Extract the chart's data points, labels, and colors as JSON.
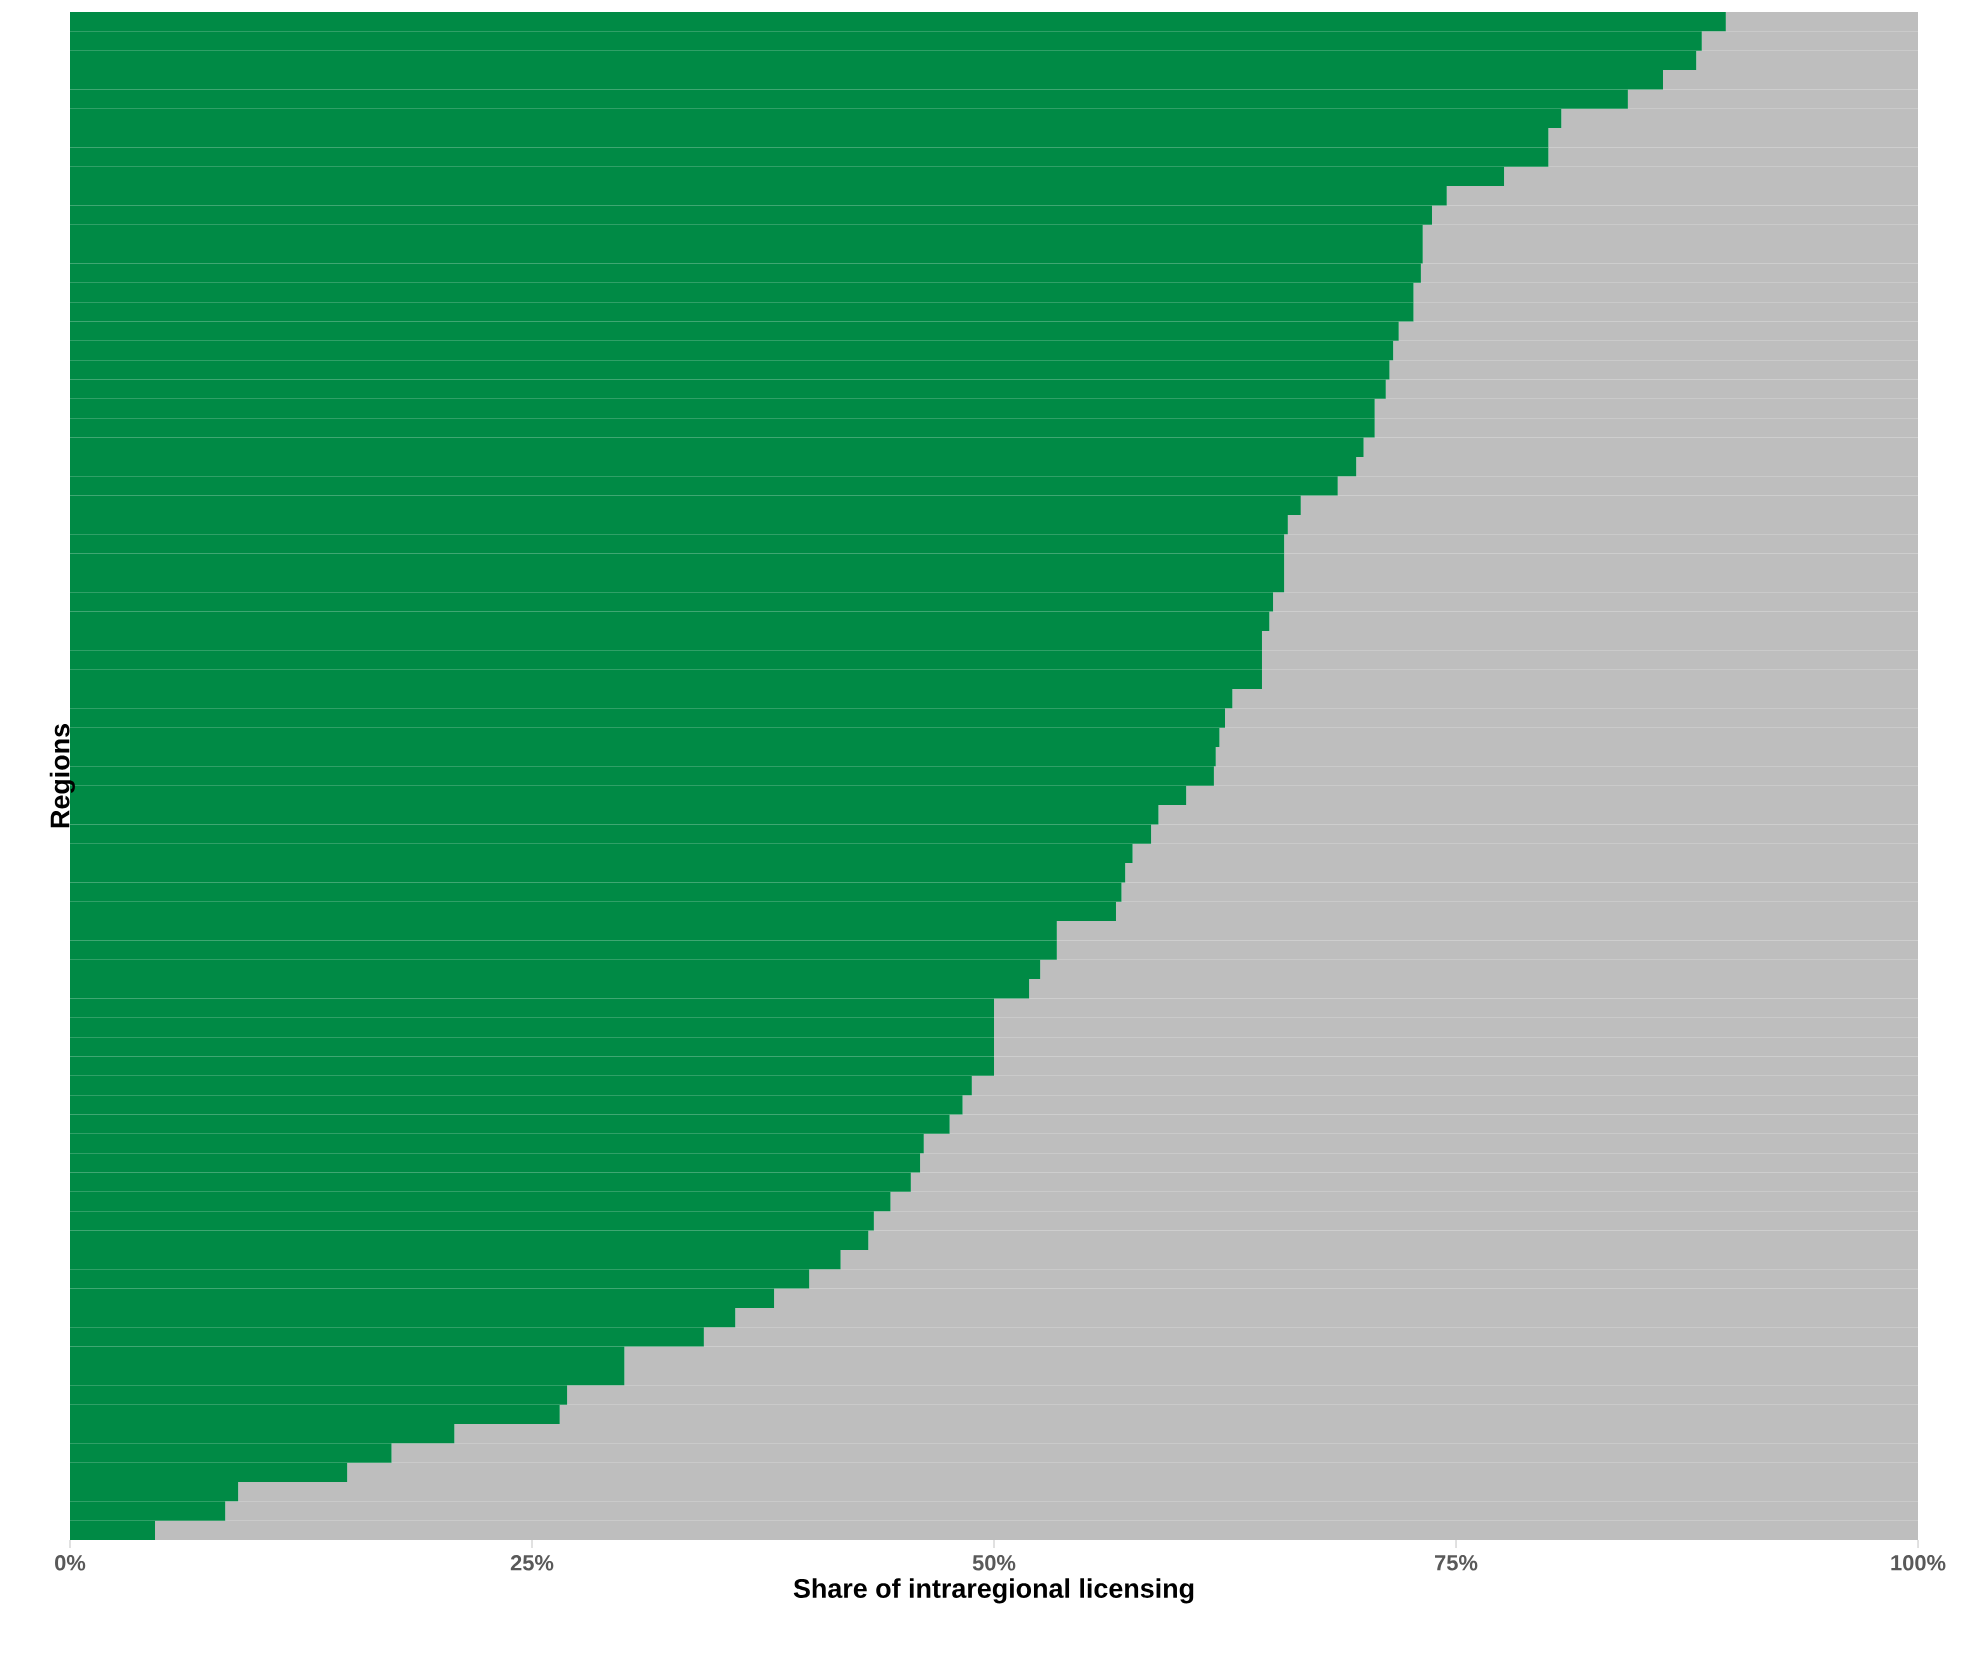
{
  "chart_data": {
    "type": "bar",
    "orientation": "horizontal",
    "stacked": true,
    "xlabel": "Share of intraregional licensing",
    "ylabel": "Regions",
    "categories": [
      null,
      null,
      null,
      null,
      null,
      null,
      null,
      null,
      null,
      null,
      null,
      null,
      null,
      null,
      null,
      null,
      null,
      null,
      null,
      null,
      null,
      null,
      null,
      null,
      null,
      null,
      null,
      null,
      null,
      null,
      null,
      null,
      null,
      null,
      null,
      null,
      null,
      null,
      null,
      null,
      null,
      null,
      null,
      null,
      null,
      null,
      null,
      null,
      null,
      null,
      null,
      null,
      null,
      null,
      null,
      null,
      null,
      null,
      null,
      null,
      null,
      null,
      null,
      null,
      null,
      null,
      null,
      null,
      null,
      null,
      null,
      null,
      null,
      null,
      null,
      null,
      null,
      null,
      null
    ],
    "series": [
      {
        "color": "#008a45",
        "values": [
          89.6,
          88.3,
          88.0,
          86.2,
          84.3,
          80.7,
          80.0,
          80.0,
          77.6,
          74.5,
          73.7,
          73.2,
          73.2,
          73.1,
          72.7,
          72.7,
          71.9,
          71.6,
          71.4,
          71.2,
          70.6,
          70.6,
          70.0,
          69.6,
          68.6,
          66.6,
          65.9,
          65.7,
          65.7,
          65.7,
          65.1,
          64.9,
          64.5,
          64.5,
          64.5,
          62.9,
          62.5,
          62.2,
          62.0,
          61.9,
          60.4,
          58.9,
          58.5,
          57.5,
          57.1,
          56.9,
          56.6,
          53.4,
          53.4,
          52.5,
          51.9,
          50.0,
          50.0,
          50.0,
          50.0,
          48.8,
          48.3,
          47.6,
          46.2,
          46.0,
          45.5,
          44.4,
          43.5,
          43.2,
          41.7,
          40.0,
          38.1,
          36.0,
          34.3,
          30.0,
          30.0,
          26.9,
          26.5,
          20.8,
          17.4,
          15.0,
          9.1,
          8.4,
          4.6
        ]
      },
      {
        "color": "#bebebe",
        "values": [
          10.4,
          11.7,
          12.0,
          13.8,
          15.7,
          19.3,
          20.0,
          20.0,
          22.4,
          25.5,
          26.3,
          26.8,
          26.8,
          26.9,
          27.3,
          27.3,
          28.1,
          28.4,
          28.6,
          28.8,
          29.4,
          29.4,
          30.0,
          30.4,
          31.4,
          33.4,
          34.1,
          34.3,
          34.3,
          34.3,
          34.9,
          35.1,
          35.5,
          35.5,
          35.5,
          37.1,
          37.5,
          37.8,
          38.0,
          38.1,
          39.6,
          41.1,
          41.5,
          42.5,
          42.9,
          43.1,
          43.4,
          46.6,
          46.6,
          47.5,
          48.1,
          50.0,
          50.0,
          50.0,
          50.0,
          51.2,
          51.7,
          52.4,
          53.8,
          54.0,
          54.5,
          55.6,
          56.5,
          56.8,
          58.3,
          60.0,
          61.9,
          64.0,
          65.7,
          70.0,
          70.0,
          73.1,
          73.5,
          79.2,
          82.6,
          85.0,
          90.9,
          91.6,
          95.4
        ]
      }
    ],
    "xlim": [
      0,
      100
    ],
    "xticks": [
      {
        "value": 0,
        "label": "0%"
      },
      {
        "value": 25,
        "label": "25%"
      },
      {
        "value": 50,
        "label": "50%"
      },
      {
        "value": 75,
        "label": "75%"
      },
      {
        "value": 100,
        "label": "100%"
      }
    ]
  }
}
